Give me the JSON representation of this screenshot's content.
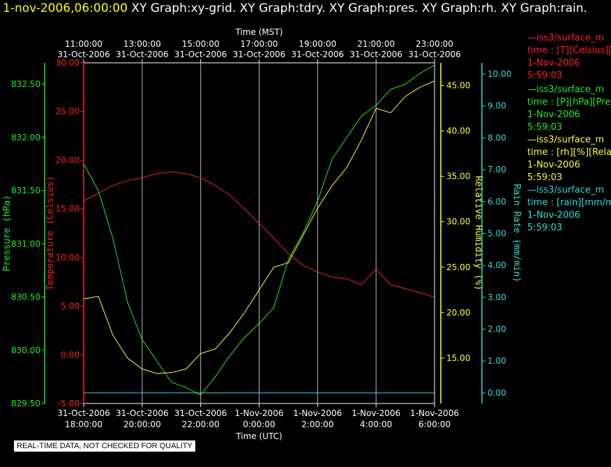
{
  "header": {
    "datetime": "1-nov-2006,06:00:00",
    "graphs": [
      "XY Graph:xy-grid.",
      "XY Graph:tdry.",
      "XY Graph:pres.",
      "XY Graph:rh.",
      "XY Graph:rain."
    ]
  },
  "legend": [
    {
      "line1": "—iss3/surface_m",
      "line2": "time : [T][Celsius][T",
      "line3": "1-Nov-2006",
      "line4": "5:59:03",
      "color": "#ff2020"
    },
    {
      "line1": "—iss3/surface_m",
      "line2": "time : [P][hPa][Pres",
      "line3": "1-Nov-2006",
      "line4": "5:59:03",
      "color": "#22ee22"
    },
    {
      "line1": "—iss3/surface_m",
      "line2": "time : [rh][%][Relativ",
      "line3": "1-Nov-2006",
      "line4": "5:59:03",
      "color": "#ffff33"
    },
    {
      "line1": "—iss3/surface_m",
      "line2": "time : [rain][mm/min",
      "line3": "1-Nov-2006",
      "line4": "5:59:03",
      "color": "#33dddd"
    }
  ],
  "notice": "REAL-TIME DATA, NOT CHECKED FOR QUALITY",
  "chart_data": {
    "type": "line",
    "grid": true,
    "x_top": {
      "label": "Time (MST)",
      "ticks": [
        [
          "11:00:00",
          "31-Oct-2006"
        ],
        [
          "13:00:00",
          "31-Oct-2006"
        ],
        [
          "15:00:00",
          "31-Oct-2006"
        ],
        [
          "17:00:00",
          "31-Oct-2006"
        ],
        [
          "19:00:00",
          "31-Oct-2006"
        ],
        [
          "21:00:00",
          "31-Oct-2006"
        ],
        [
          "23:00:00",
          "31-Oct-2006"
        ]
      ]
    },
    "x_bottom": {
      "label": "Time (UTC)",
      "hours": [
        18,
        20,
        22,
        24,
        26,
        28,
        30
      ],
      "range": [
        18,
        30
      ],
      "ticks": [
        [
          "31-Oct-2006",
          "18:00:00"
        ],
        [
          "31-Oct-2006",
          "20:00:00"
        ],
        [
          "31-Oct-2006",
          "22:00:00"
        ],
        [
          "1-Nov-2006",
          "0:00:00"
        ],
        [
          "1-Nov-2006",
          "2:00:00"
        ],
        [
          "1-Nov-2006",
          "4:00:00"
        ],
        [
          "1-Nov-2006",
          "6:00:00"
        ]
      ]
    },
    "axes": {
      "pressure": {
        "label": "Pressure (hPa)",
        "range": [
          829.5,
          832.7
        ],
        "ticks": [
          "832.50",
          "832.00",
          "831.50",
          "831.00",
          "830.50",
          "830.00",
          "829.50"
        ],
        "color": "#22ee22"
      },
      "temperature": {
        "label": "Temperature (Celsius)",
        "range": [
          -5,
          30
        ],
        "ticks": [
          "30.00",
          "25.00",
          "20.00",
          "15.00",
          "10.00",
          "5.00",
          "0.00",
          "-5.00"
        ],
        "color": "#ff2020"
      },
      "rh": {
        "label": "Relative Humidity (%)",
        "range": [
          10,
          47.5
        ],
        "ticks": [
          "45.00",
          "40.00",
          "35.00",
          "30.00",
          "25.00",
          "20.00",
          "15.00"
        ],
        "color": "#ffff33"
      },
      "rain": {
        "label": "Rain Rate (mm/min)",
        "range": [
          -0.33,
          10.35
        ],
        "ticks": [
          "10.00",
          "9.00",
          "8.00",
          "7.00",
          "6.00",
          "5.00",
          "4.00",
          "3.00",
          "2.00",
          "1.00",
          "0.00"
        ],
        "color": "#33dddd"
      }
    },
    "series": [
      {
        "name": "iss3/surface_m T",
        "axis": "temperature",
        "color": "#ff2020",
        "x": [
          18,
          18.5,
          19,
          19.5,
          20,
          20.5,
          21,
          21.5,
          22,
          22.5,
          23,
          23.5,
          24,
          24.5,
          25,
          25.5,
          26,
          26.5,
          27,
          27.5,
          28,
          28.5,
          29,
          29.5,
          30
        ],
        "y": [
          15.8,
          16.6,
          17.4,
          17.9,
          18.2,
          18.6,
          18.8,
          18.6,
          18.2,
          17.4,
          16.4,
          15.0,
          13.5,
          12.0,
          10.4,
          9.2,
          8.5,
          8.0,
          7.8,
          7.2,
          8.8,
          7.2,
          6.8,
          6.4,
          5.9
        ]
      },
      {
        "name": "iss3/surface_m P",
        "axis": "pressure",
        "color": "#22ee22",
        "x": [
          18,
          18.5,
          19,
          19.5,
          20,
          20.5,
          21,
          21.5,
          22,
          22.5,
          23,
          23.5,
          24,
          24.5,
          25,
          25.5,
          26,
          26.5,
          27,
          27.5,
          28,
          28.5,
          29,
          29.5,
          30
        ],
        "y": [
          831.75,
          831.5,
          831.05,
          830.45,
          830.1,
          829.9,
          829.7,
          829.65,
          829.58,
          829.75,
          829.95,
          830.12,
          830.25,
          830.4,
          830.85,
          831.1,
          831.4,
          831.8,
          832.0,
          832.2,
          832.3,
          832.45,
          832.5,
          832.6,
          832.68
        ]
      },
      {
        "name": "iss3/surface_m rh",
        "axis": "rh",
        "color": "#ffff33",
        "x": [
          18,
          18.5,
          19,
          19.5,
          20,
          20.5,
          21,
          21.5,
          22,
          22.5,
          23,
          23.5,
          24,
          24.5,
          25,
          25.5,
          26,
          26.5,
          27,
          27.5,
          28,
          28.5,
          29,
          29.5,
          30
        ],
        "y": [
          21.5,
          21.8,
          17.5,
          15.0,
          13.8,
          13.3,
          13.4,
          13.8,
          15.5,
          16.0,
          17.8,
          20.0,
          22.5,
          25.0,
          25.5,
          28.5,
          31.5,
          34.0,
          36.0,
          39.0,
          42.5,
          42.0,
          43.8,
          44.8,
          45.5
        ]
      },
      {
        "name": "iss3/surface_m rain",
        "axis": "rain",
        "color": "#33dddd",
        "x": [
          18,
          30
        ],
        "y": [
          0.0,
          0.0
        ]
      }
    ]
  }
}
